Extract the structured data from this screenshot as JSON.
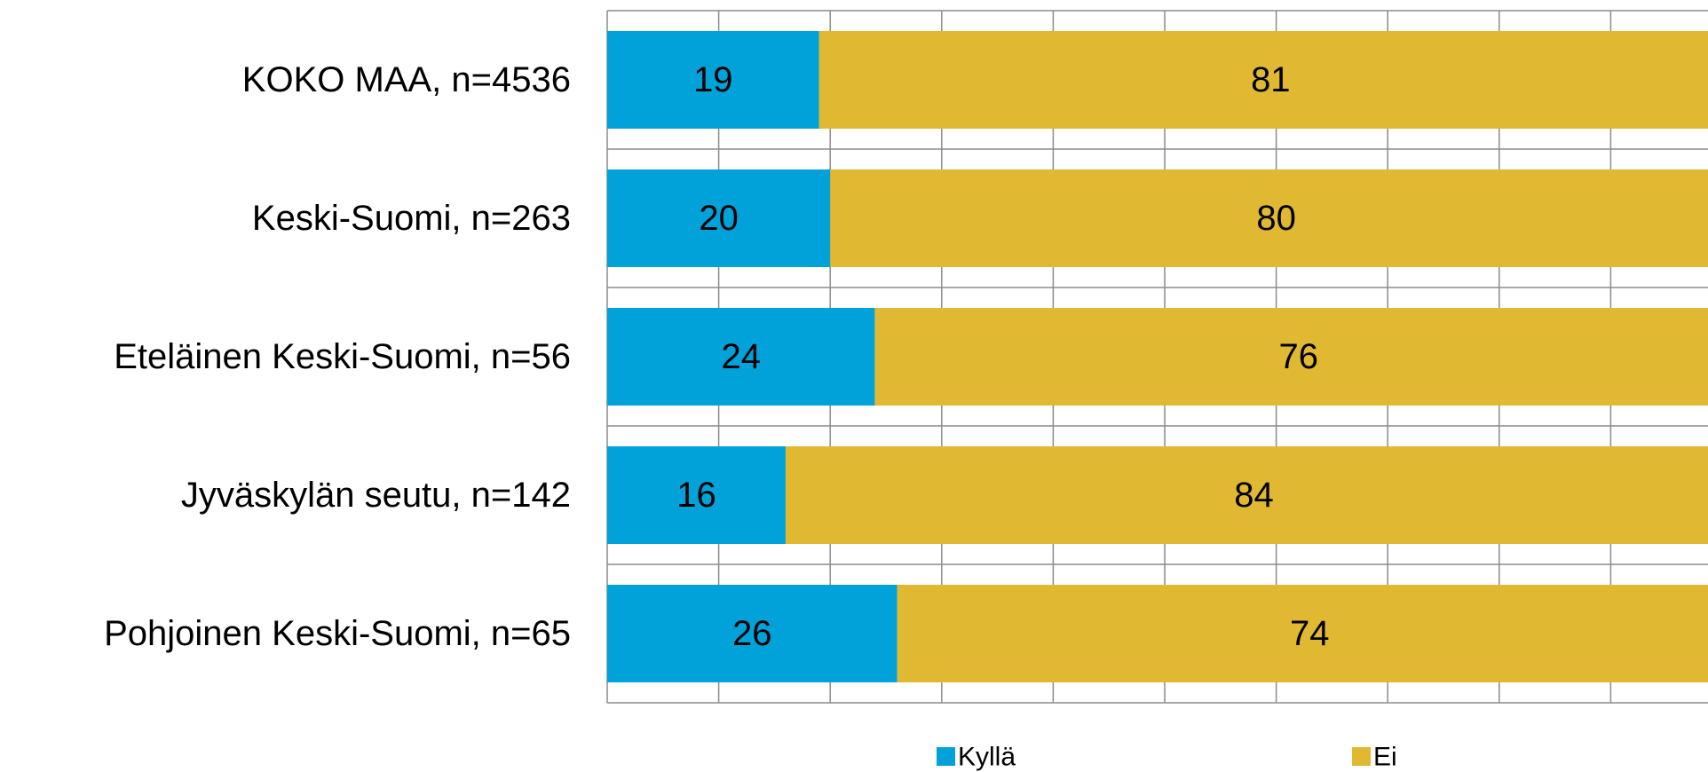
{
  "chart_data": {
    "type": "bar",
    "orientation": "horizontal",
    "stacked": true,
    "categories": [
      "KOKO MAA, n=4536",
      "Keski-Suomi, n=263",
      "Eteläinen Keski-Suomi, n=56",
      "Jyväskylän seutu, n=142",
      "Pohjoinen Keski-Suomi, n=65"
    ],
    "series": [
      {
        "name": "Kyllä",
        "color": "#00a2d9",
        "values": [
          19,
          20,
          24,
          16,
          26
        ]
      },
      {
        "name": "Ei",
        "color": "#e0b832",
        "values": [
          81,
          80,
          76,
          84,
          74
        ]
      }
    ],
    "xlim": [
      0,
      100
    ],
    "grid": true,
    "legend": "bottom",
    "data_labels": true
  }
}
